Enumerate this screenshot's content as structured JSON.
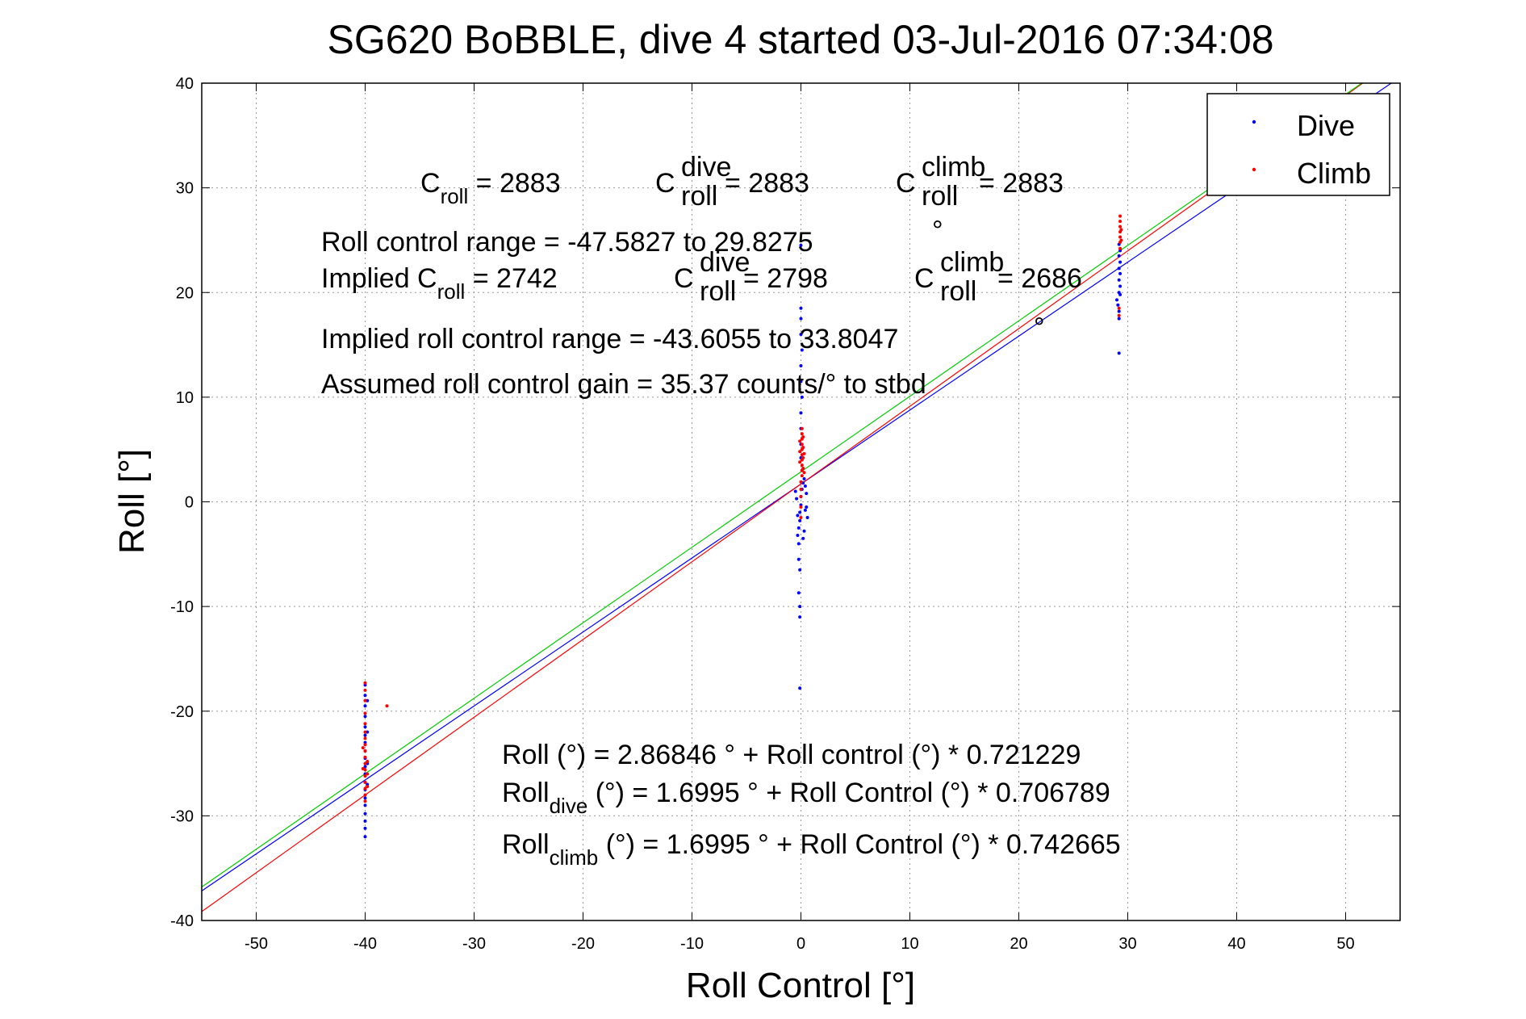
{
  "chart_data": {
    "type": "scatter",
    "title": "SG620 BoBBLE, dive 4 started 03-Jul-2016 07:34:08",
    "xlabel": "Roll Control [°]",
    "ylabel": "Roll [°]",
    "xlim": [
      -55,
      55
    ],
    "ylim": [
      -40,
      40
    ],
    "xticks": [
      -50,
      -40,
      -30,
      -20,
      -10,
      0,
      10,
      20,
      30,
      40,
      50
    ],
    "yticks": [
      -40,
      -30,
      -20,
      -10,
      0,
      10,
      20,
      30,
      40
    ],
    "grid": true,
    "legend_position": "top-right",
    "series": [
      {
        "name": "Dive",
        "color": "#0000ff",
        "points": [
          [
            -40.0,
            -32.0
          ],
          [
            -40.0,
            -31.2
          ],
          [
            -40.0,
            -30.5
          ],
          [
            -40.0,
            -29.8
          ],
          [
            -40.0,
            -29.0
          ],
          [
            -40.0,
            -28.3
          ],
          [
            -40.0,
            -27.5
          ],
          [
            -40.0,
            -26.8
          ],
          [
            -40.0,
            -26.0
          ],
          [
            -40.0,
            -25.3
          ],
          [
            -40.0,
            -24.5
          ],
          [
            -40.0,
            -23.8
          ],
          [
            -40.0,
            -23.0
          ],
          [
            -40.0,
            -22.3
          ],
          [
            -40.0,
            -21.5
          ],
          [
            -40.0,
            -20.5
          ],
          [
            -40.0,
            -19.5
          ],
          [
            -40.0,
            -18.5
          ],
          [
            -40.0,
            -17.5
          ],
          [
            -39.8,
            -27.0
          ],
          [
            -39.8,
            -25.0
          ],
          [
            -39.8,
            -22.0
          ],
          [
            -39.8,
            -19.0
          ],
          [
            -0.1,
            -17.8
          ],
          [
            -0.1,
            -11.0
          ],
          [
            -0.1,
            -10.0
          ],
          [
            -0.2,
            -8.7
          ],
          [
            -0.1,
            -6.5
          ],
          [
            -0.2,
            -5.5
          ],
          [
            -0.2,
            -4.0
          ],
          [
            -0.3,
            -3.2
          ],
          [
            -0.2,
            -2.5
          ],
          [
            -0.1,
            -1.8
          ],
          [
            -0.1,
            -1.0
          ],
          [
            0.0,
            -0.3
          ],
          [
            0.0,
            0.5
          ],
          [
            0.1,
            1.2
          ],
          [
            0.2,
            1.8
          ],
          [
            0.3,
            2.2
          ],
          [
            0.4,
            1.5
          ],
          [
            0.5,
            0.8
          ],
          [
            0.5,
            -0.5
          ],
          [
            0.6,
            -1.5
          ],
          [
            0.3,
            -2.8
          ],
          [
            0.2,
            -3.5
          ],
          [
            0.1,
            3.0
          ],
          [
            0.0,
            4.2
          ],
          [
            0.0,
            5.5
          ],
          [
            0.0,
            7.0
          ],
          [
            0.0,
            8.5
          ],
          [
            0.1,
            10.0
          ],
          [
            0.0,
            11.5
          ],
          [
            0.0,
            13.0
          ],
          [
            0.1,
            14.5
          ],
          [
            0.0,
            16.0
          ],
          [
            0.0,
            17.5
          ],
          [
            0.0,
            18.5
          ],
          [
            0.0,
            24.5
          ],
          [
            -0.4,
            0.3
          ],
          [
            -0.5,
            1.0
          ],
          [
            0.4,
            -0.8
          ],
          [
            -0.3,
            -1.3
          ],
          [
            29.2,
            14.2
          ],
          [
            29.2,
            17.5
          ],
          [
            29.2,
            18.2
          ],
          [
            29.0,
            19.3
          ],
          [
            29.2,
            20.0
          ],
          [
            29.3,
            20.6
          ],
          [
            29.2,
            21.2
          ],
          [
            29.3,
            21.8
          ],
          [
            29.2,
            22.3
          ],
          [
            29.3,
            22.9
          ],
          [
            29.2,
            23.5
          ],
          [
            29.3,
            24.0
          ],
          [
            29.2,
            24.6
          ],
          [
            29.1,
            18.8
          ],
          [
            29.3,
            19.8
          ]
        ]
      },
      {
        "name": "Climb",
        "color": "#ff0000",
        "points": [
          [
            -40.0,
            -28.6
          ],
          [
            -40.0,
            -28.0
          ],
          [
            -40.0,
            -27.4
          ],
          [
            -40.0,
            -26.8
          ],
          [
            -40.0,
            -26.2
          ],
          [
            -40.0,
            -25.6
          ],
          [
            -40.0,
            -25.0
          ],
          [
            -40.0,
            -24.4
          ],
          [
            -40.0,
            -23.8
          ],
          [
            -40.0,
            -23.2
          ],
          [
            -40.0,
            -22.6
          ],
          [
            -40.0,
            -22.0
          ],
          [
            -40.0,
            -21.2
          ],
          [
            -40.0,
            -20.2
          ],
          [
            -40.0,
            -19.0
          ],
          [
            -40.0,
            -18.0
          ],
          [
            -40.0,
            -17.3
          ],
          [
            -39.8,
            -27.2
          ],
          [
            -39.8,
            -26.0
          ],
          [
            -39.8,
            -24.8
          ],
          [
            -40.2,
            -25.5
          ],
          [
            -40.2,
            -23.5
          ],
          [
            -38.0,
            -19.5
          ],
          [
            0.0,
            -1.5
          ],
          [
            0.0,
            -0.5
          ],
          [
            0.0,
            0.5
          ],
          [
            0.0,
            1.2
          ],
          [
            0.0,
            1.9
          ],
          [
            0.1,
            2.5
          ],
          [
            0.1,
            3.0
          ],
          [
            0.1,
            3.5
          ],
          [
            0.1,
            4.0
          ],
          [
            0.1,
            4.5
          ],
          [
            0.1,
            5.0
          ],
          [
            0.1,
            5.5
          ],
          [
            0.1,
            6.0
          ],
          [
            0.1,
            6.5
          ],
          [
            0.1,
            7.0
          ],
          [
            0.2,
            3.2
          ],
          [
            0.2,
            4.2
          ],
          [
            0.2,
            5.2
          ],
          [
            0.2,
            6.2
          ],
          [
            -0.1,
            3.8
          ],
          [
            -0.1,
            4.8
          ],
          [
            -0.1,
            5.8
          ],
          [
            0.3,
            2.8
          ],
          [
            0.3,
            4.6
          ],
          [
            29.2,
            17.8
          ],
          [
            29.2,
            18.5
          ],
          [
            29.3,
            24.2
          ],
          [
            29.3,
            24.8
          ],
          [
            29.3,
            25.3
          ],
          [
            29.3,
            25.8
          ],
          [
            29.3,
            26.3
          ],
          [
            29.3,
            26.8
          ],
          [
            29.3,
            27.3
          ],
          [
            29.4,
            25.0
          ],
          [
            29.4,
            26.0
          ]
        ]
      }
    ],
    "fit_lines": [
      {
        "color": "#0000ff",
        "intercept": 1.6995,
        "slope": 0.706789
      },
      {
        "color": "#ff0000",
        "intercept": 1.6995,
        "slope": 0.742665
      },
      {
        "color": "#00cc00",
        "intercept": 2.86846,
        "slope": 0.721229
      }
    ],
    "annotations": {
      "c_roll": {
        "base": "C",
        "sub": "roll",
        "rest": " = 2883"
      },
      "c_roll_dive": {
        "base": "C",
        "sup": "dive",
        "sub": "roll",
        "rest": " = 2883"
      },
      "c_roll_climb": {
        "base": "C",
        "sup": "climb",
        "sub": "roll",
        "rest": " = 2883"
      },
      "roll_range": "Roll control range = -47.5827 to 29.8275",
      "degree_sign": "°",
      "implied_c_roll": {
        "prefix": "Implied C",
        "sub": "roll",
        "rest": " = 2742"
      },
      "implied_c_roll_dive": {
        "base": "C",
        "sup": "dive",
        "sub": "roll",
        "rest": " = 2798"
      },
      "implied_c_roll_climb": {
        "base": "C",
        "sup": "climb",
        "sub": "roll",
        "rest": " = 2686"
      },
      "implied_range": "Implied roll control range = -43.6055 to 33.8047",
      "assumed_gain": "Assumed roll control gain = 35.37 counts/° to stbd",
      "eq_all": "Roll (°) = 2.86846 ° + Roll control (°) * 0.721229",
      "eq_dive": {
        "base": "Roll",
        "sub": "dive",
        "rest": " (°) = 1.6995 ° + Roll Control (°) * 0.706789"
      },
      "eq_climb": {
        "base": "Roll",
        "sub": "climb",
        "rest": " (°) = 1.6995 ° + Roll Control (°) * 0.742665"
      }
    }
  }
}
